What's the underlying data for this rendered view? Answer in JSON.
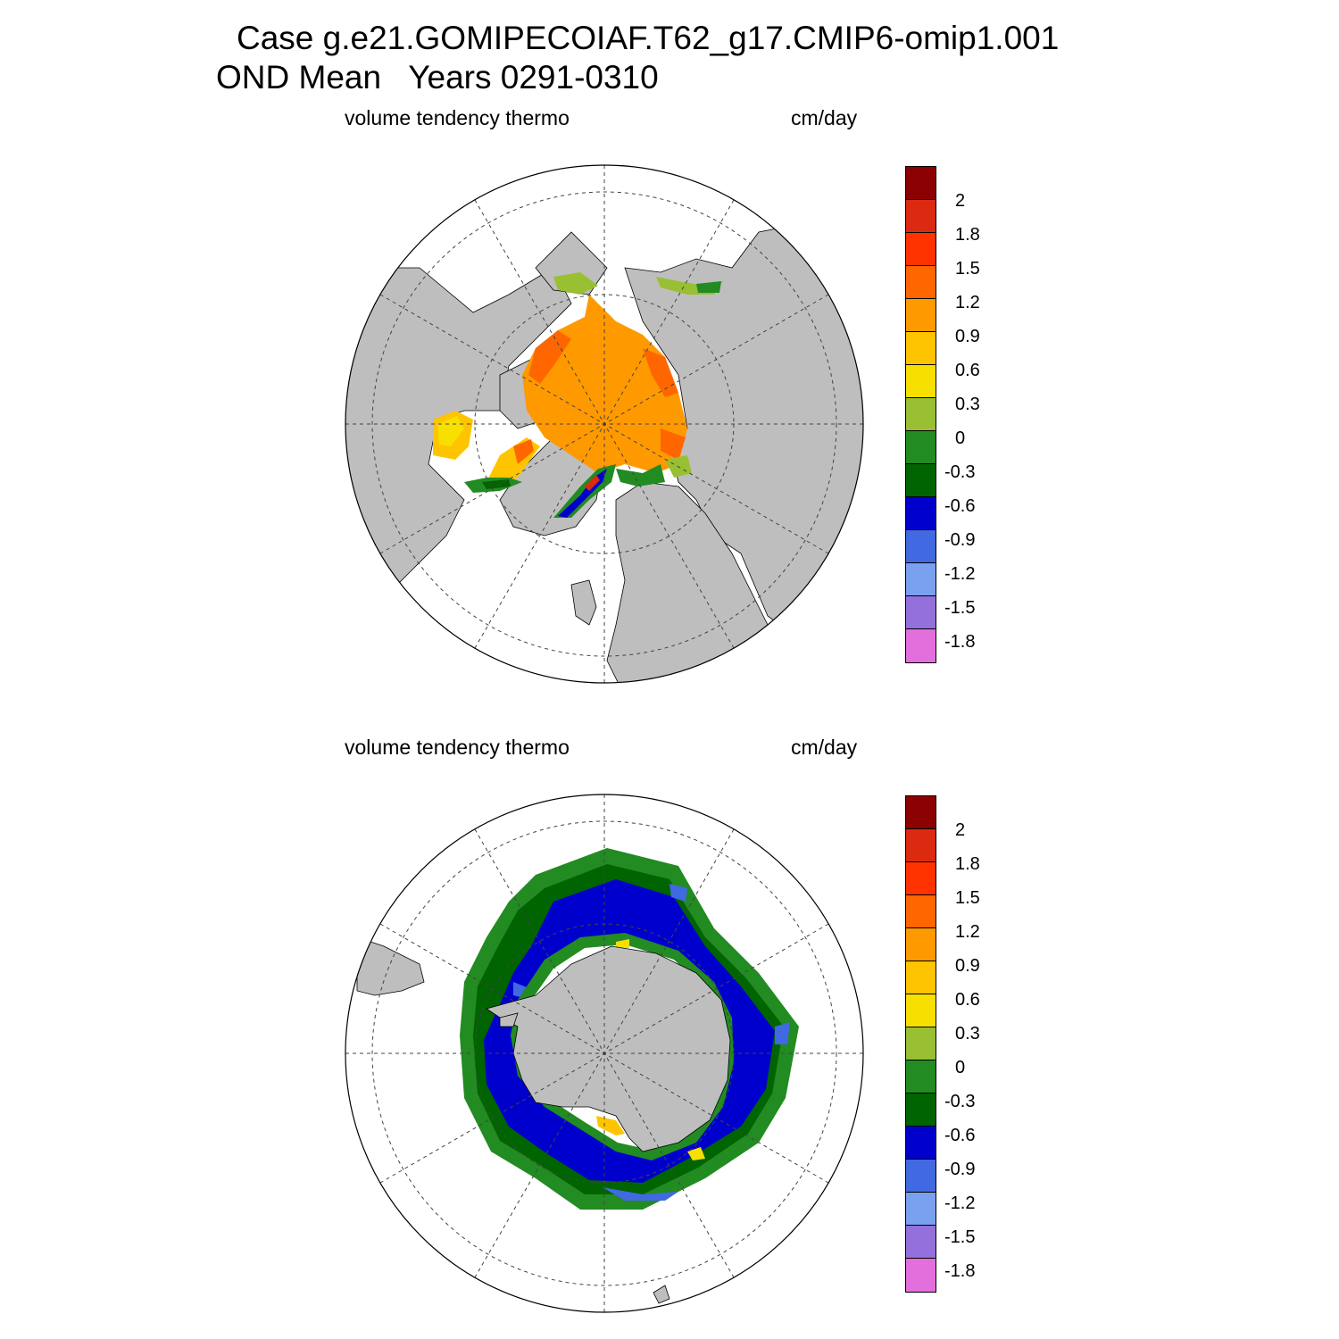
{
  "title": {
    "line1": "Case g.e21.GOMIPECOIAF.T62_g17.CMIP6-omip1.001",
    "line2": "OND Mean   Years 0291-0310"
  },
  "panels": [
    {
      "id": "north",
      "left_label": "volume tendency thermo",
      "right_label": "cm/day"
    },
    {
      "id": "south",
      "left_label": "volume tendency thermo",
      "right_label": "cm/day"
    }
  ],
  "colorbar": {
    "tick_labels": [
      "2",
      "1.8",
      "1.5",
      "1.2",
      "0.9",
      "0.6",
      "0.3",
      "0",
      "-0.3",
      "-0.6",
      "-0.9",
      "-1.2",
      "-1.5",
      "-1.8"
    ],
    "colors": [
      "#8b0000",
      "#dc2a10",
      "#ff3300",
      "#ff6600",
      "#ff9900",
      "#ffc400",
      "#f7e000",
      "#99bf33",
      "#228b22",
      "#006400",
      "#0000cd",
      "#4169e1",
      "#7aa0f0",
      "#9370db",
      "#e36fdc"
    ]
  },
  "map_colors": {
    "land": "#bebebe",
    "ocean": "#ffffff"
  }
}
